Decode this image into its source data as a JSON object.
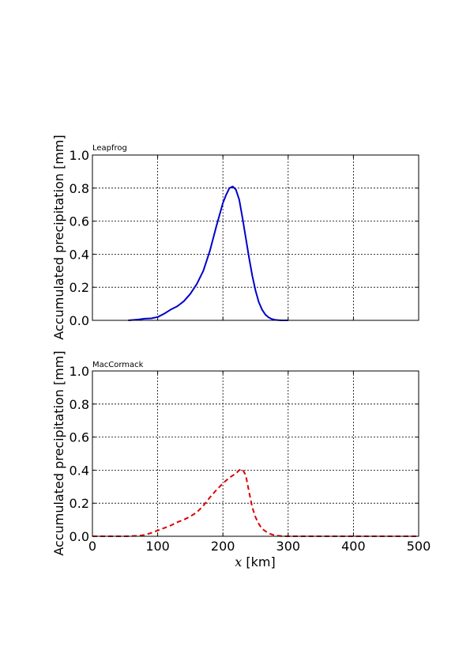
{
  "chart_data": [
    {
      "type": "line",
      "title": "Leapfrog",
      "xlabel": "",
      "ylabel": "Accumulated precipitation [mm]",
      "xlim": [
        0,
        500
      ],
      "ylim": [
        0.0,
        1.0
      ],
      "xticks": [
        0,
        100,
        200,
        300,
        400,
        500
      ],
      "yticks": [
        "0.0",
        "0.2",
        "0.4",
        "0.6",
        "0.8",
        "1.0"
      ],
      "show_xticklabels": false,
      "grid": true,
      "series": [
        {
          "color": "#0000cc",
          "linestyle": "solid",
          "x": [
            55,
            70,
            80,
            90,
            100,
            110,
            120,
            130,
            140,
            150,
            160,
            170,
            180,
            190,
            200,
            205,
            210,
            215,
            220,
            225,
            230,
            235,
            240,
            245,
            250,
            255,
            260,
            265,
            270,
            275,
            280,
            285,
            290,
            300
          ],
          "y": [
            0.0,
            0.005,
            0.01,
            0.012,
            0.02,
            0.04,
            0.065,
            0.085,
            0.115,
            0.16,
            0.22,
            0.3,
            0.42,
            0.57,
            0.71,
            0.76,
            0.8,
            0.81,
            0.79,
            0.73,
            0.62,
            0.5,
            0.38,
            0.27,
            0.18,
            0.11,
            0.065,
            0.035,
            0.018,
            0.008,
            0.003,
            0.001,
            0.0,
            0.0
          ]
        }
      ]
    },
    {
      "type": "line",
      "title": "MacCormack",
      "xlabel": "x [km]",
      "ylabel": "Accumulated precipitation [mm]",
      "xlim": [
        0,
        500
      ],
      "ylim": [
        0.0,
        1.0
      ],
      "xticks": [
        0,
        100,
        200,
        300,
        400,
        500
      ],
      "xticklabels": [
        "0",
        "100",
        "200",
        "300",
        "400",
        "500"
      ],
      "yticks": [
        "0.0",
        "0.2",
        "0.4",
        "0.6",
        "0.8",
        "1.0"
      ],
      "show_xticklabels": true,
      "grid": true,
      "series": [
        {
          "color": "#dd0000",
          "linestyle": "dashed",
          "x": [
            0,
            50,
            70,
            80,
            90,
            100,
            110,
            120,
            130,
            140,
            150,
            160,
            170,
            180,
            190,
            200,
            210,
            220,
            225,
            230,
            235,
            240,
            245,
            250,
            255,
            260,
            270,
            280,
            290,
            300,
            400,
            500
          ],
          "y": [
            0.0,
            0.0,
            0.003,
            0.008,
            0.02,
            0.035,
            0.05,
            0.065,
            0.085,
            0.1,
            0.12,
            0.145,
            0.185,
            0.235,
            0.28,
            0.32,
            0.355,
            0.38,
            0.4,
            0.405,
            0.37,
            0.27,
            0.175,
            0.115,
            0.075,
            0.045,
            0.018,
            0.005,
            0.001,
            0.0,
            0.0,
            0.0
          ]
        }
      ]
    }
  ]
}
